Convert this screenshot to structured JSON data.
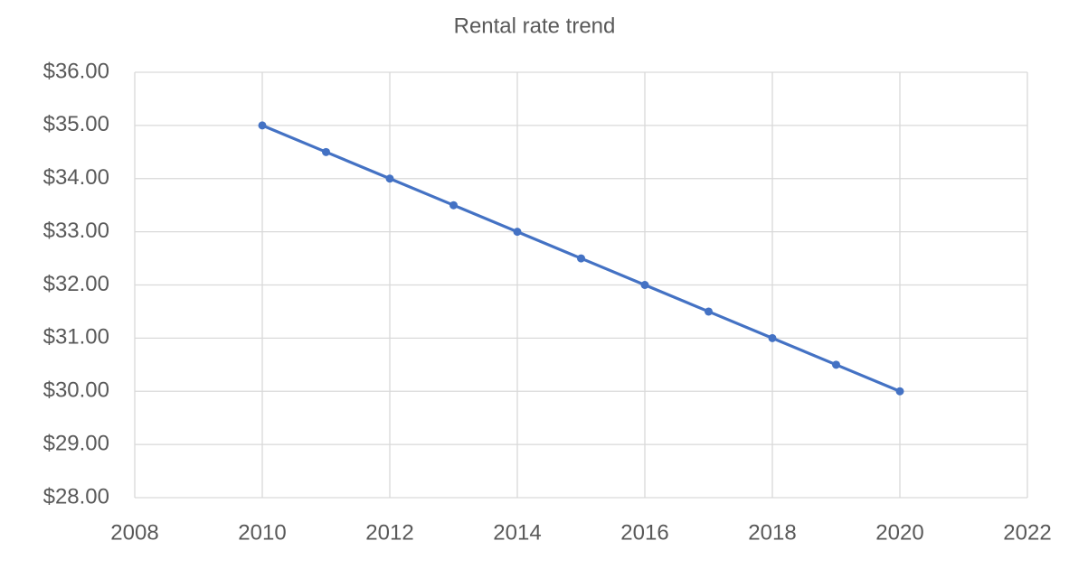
{
  "chart_data": {
    "type": "line",
    "title": "Rental rate trend",
    "x": [
      2010,
      2011,
      2012,
      2013,
      2014,
      2015,
      2016,
      2017,
      2018,
      2019,
      2020
    ],
    "values": [
      35,
      34.5,
      34,
      33.5,
      33,
      32.5,
      32,
      31.5,
      31,
      30.5,
      30
    ],
    "color": "#4472c4",
    "xlim": [
      2008,
      2022
    ],
    "xticks": [
      2008,
      2010,
      2012,
      2014,
      2016,
      2018,
      2020,
      2022
    ],
    "ylim": [
      28,
      36
    ],
    "yticks": [
      {
        "value": 28,
        "label": "$28.00"
      },
      {
        "value": 29,
        "label": "$29.00"
      },
      {
        "value": 30,
        "label": "$30.00"
      },
      {
        "value": 31,
        "label": "$31.00"
      },
      {
        "value": 32,
        "label": "$32.00"
      },
      {
        "value": 33,
        "label": "$33.00"
      },
      {
        "value": 34,
        "label": "$34.00"
      },
      {
        "value": 35,
        "label": "$35.00"
      },
      {
        "value": 36,
        "label": "$36.00"
      }
    ],
    "grid": true,
    "markers": true
  }
}
